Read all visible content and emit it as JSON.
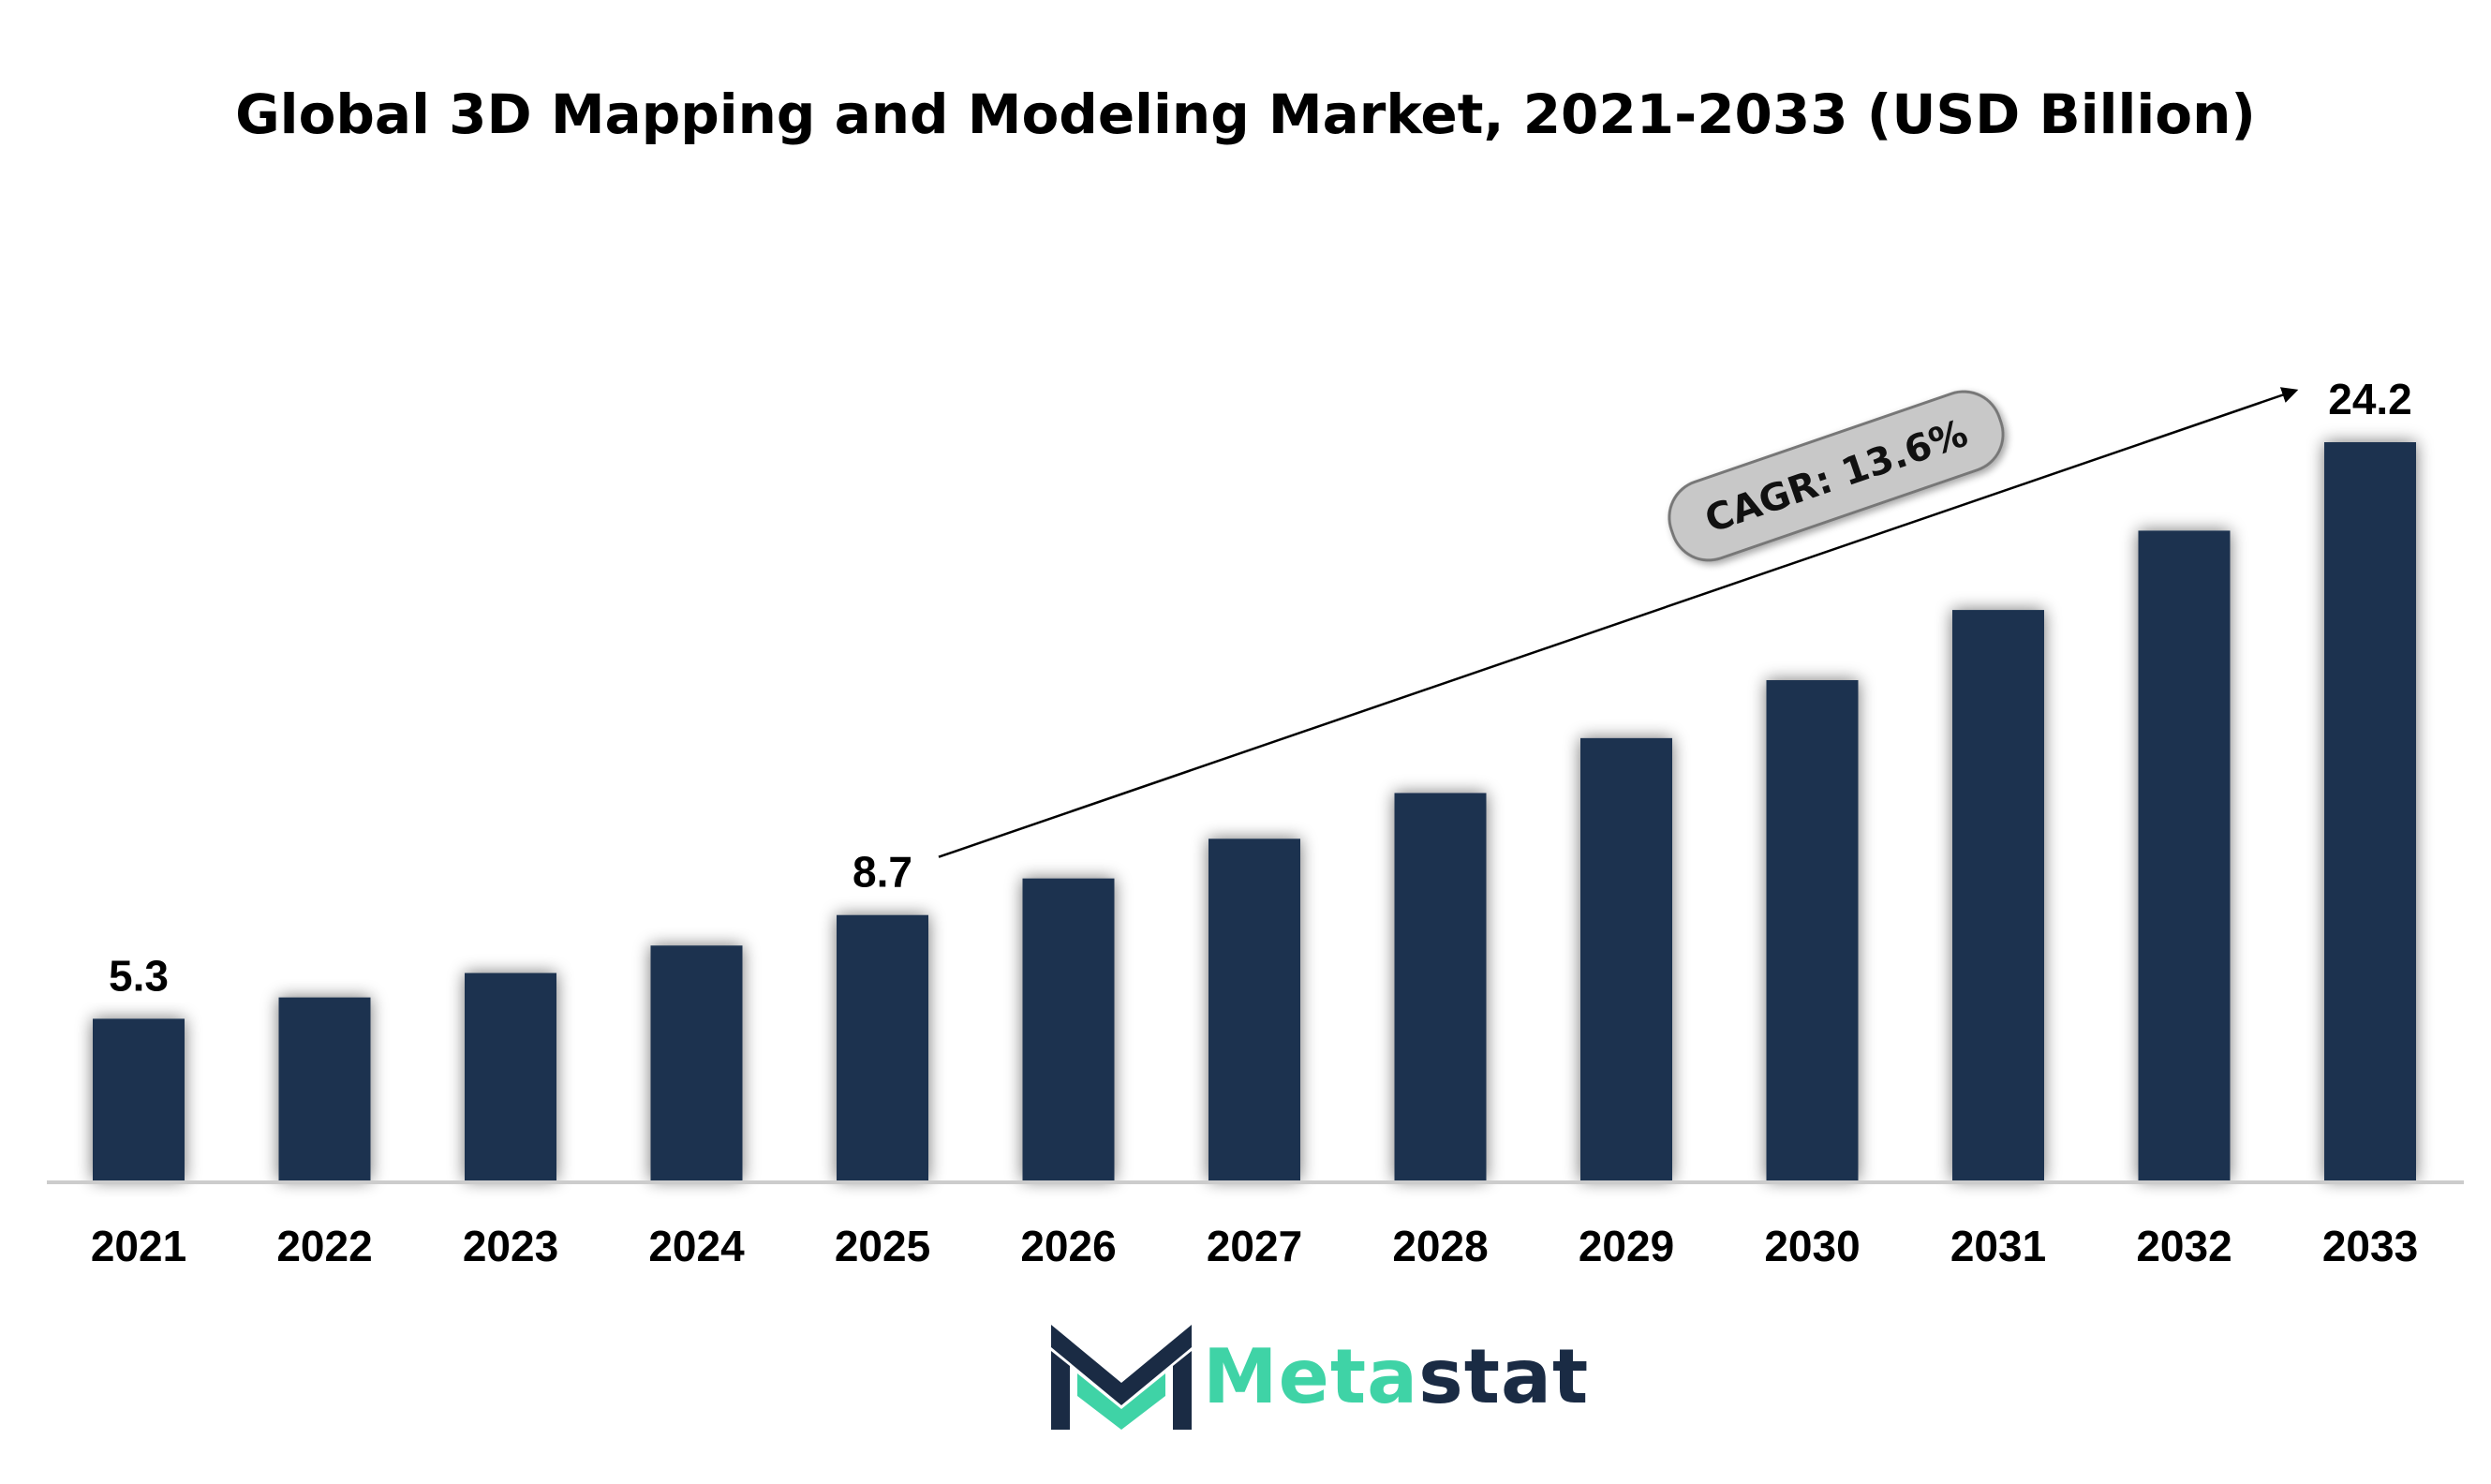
{
  "chart_data": {
    "type": "bar",
    "title": "Global 3D Mapping and Modeling Market, 2021-2033 (USD Billion)",
    "categories": [
      "2021",
      "2022",
      "2023",
      "2024",
      "2025",
      "2026",
      "2027",
      "2028",
      "2029",
      "2030",
      "2031",
      "2032",
      "2033"
    ],
    "values": [
      5.3,
      6.0,
      6.8,
      7.7,
      8.7,
      9.9,
      11.2,
      12.7,
      14.5,
      16.4,
      18.7,
      21.3,
      24.2
    ],
    "data_labels": [
      {
        "index": 0,
        "text": "5.3"
      },
      {
        "index": 4,
        "text": "8.7"
      },
      {
        "index": 12,
        "text": "24.2"
      }
    ],
    "annotation": {
      "text": "CAGR: 13.6%",
      "arrow_from_index": 4,
      "arrow_to_index": 12
    },
    "ylim": [
      0,
      24.2
    ],
    "xlabel": "",
    "ylabel": "",
    "grid": false,
    "legend": "none",
    "bar_color": "#1b3350",
    "axis_color": "#cccccc",
    "annotation_fill": "#c8c8c8"
  },
  "brand": {
    "logo_part1": "Meta",
    "logo_part2": "stat",
    "icon": "metastat-m-logo-icon",
    "color_primary": "#3fd3a6",
    "color_dark": "#1a2b44"
  }
}
